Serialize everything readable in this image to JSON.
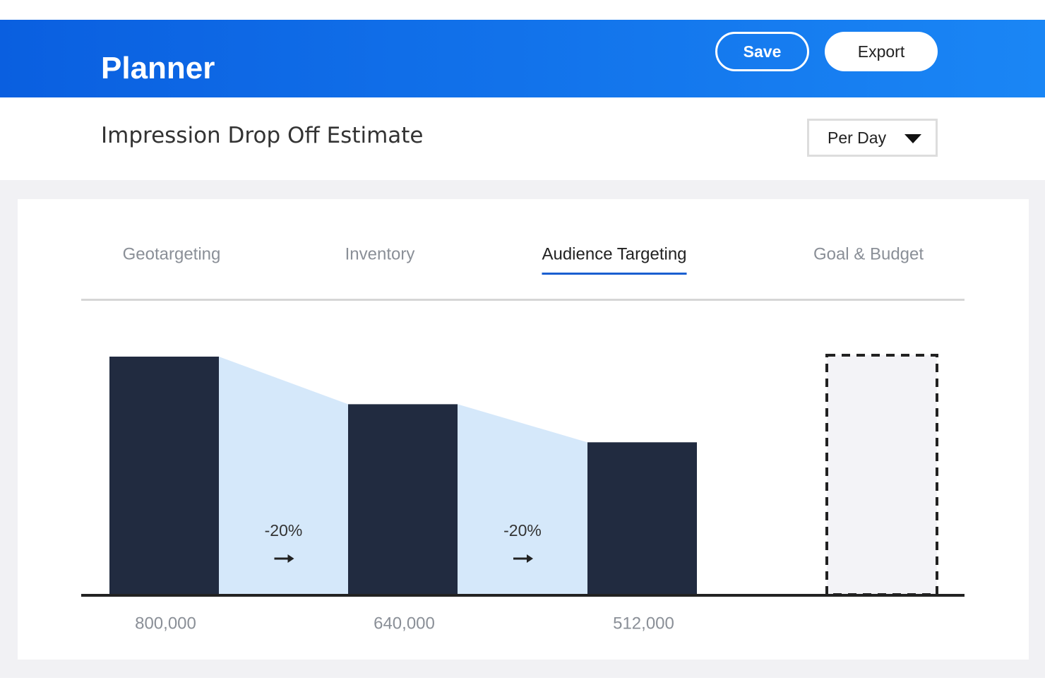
{
  "header": {
    "title": "Planner",
    "buttons": [
      "Save",
      "Export"
    ]
  },
  "subheader": {
    "title": "Impression Drop Off Estimate",
    "dropdown": "Per Day"
  },
  "tabs": {
    "items": [
      "Geotargeting",
      "Inventory",
      "Audience Targeting",
      "Goal & Budget"
    ],
    "active": 2
  },
  "chart_data": {
    "type": "bar",
    "values": [
      800000,
      640000,
      512000
    ],
    "value_labels": [
      "800,000",
      "640,000",
      "512,000"
    ],
    "drop_labels": [
      "-20%",
      "-20%"
    ],
    "ylim": [
      0,
      800000
    ],
    "color": "#212b40",
    "drop_color": "#d5e8fa"
  }
}
